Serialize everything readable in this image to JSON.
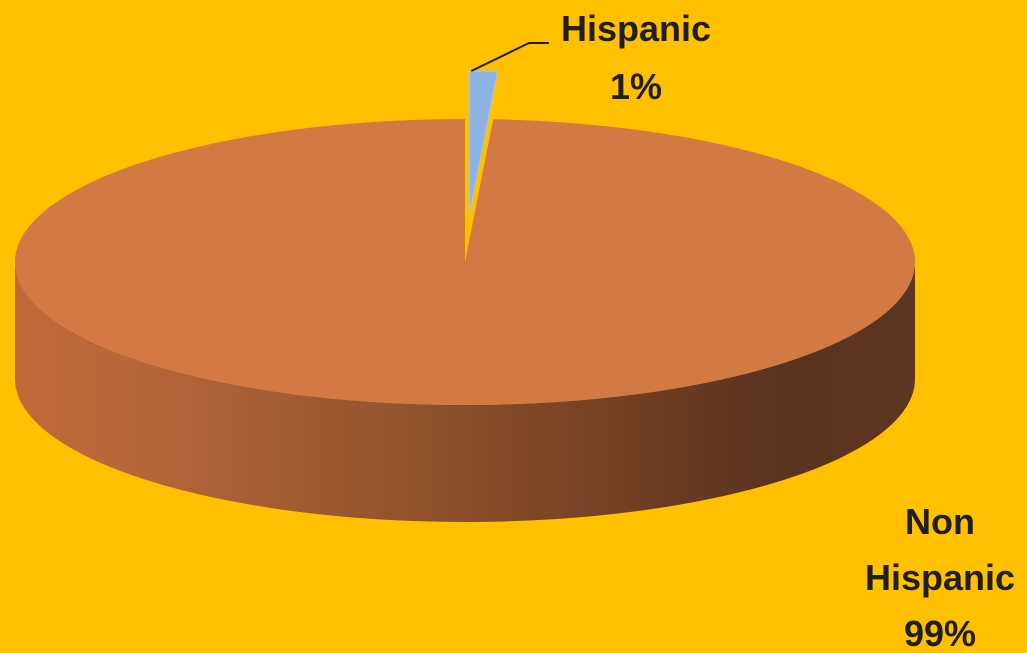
{
  "background_color": "#FFC000",
  "chart_data": {
    "type": "pie",
    "style": "3d",
    "title": "",
    "categories": [
      "Hispanic",
      "Non Hispanic"
    ],
    "values": [
      1,
      99
    ],
    "slices": [
      {
        "label": "Hispanic",
        "percent_label": "1%",
        "label_lines": [
          "Hispanic",
          "1%"
        ],
        "value": 1,
        "color": "#8EB4E3",
        "exploded": true
      },
      {
        "label": "Non Hispanic",
        "percent_label": "99%",
        "label_lines": [
          "Non",
          "Hispanic",
          "99%"
        ],
        "value": 99,
        "color": "#D37944",
        "exploded": false
      }
    ],
    "label_color": "#1F1F1F",
    "legend": "none"
  }
}
